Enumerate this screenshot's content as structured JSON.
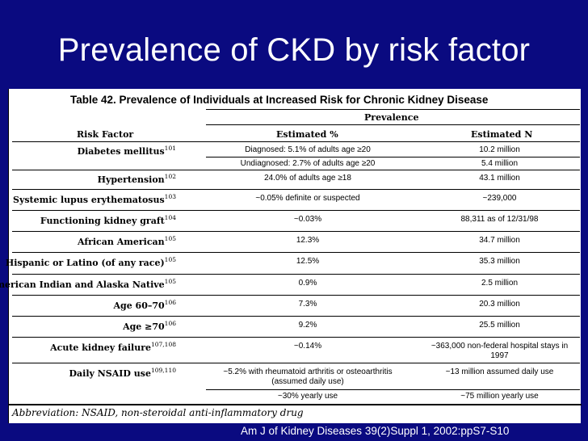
{
  "slide": {
    "title": "Prevalence of CKD by risk factor",
    "citation": "Am J of Kidney Diseases 39(2)Suppl 1, 2002:ppS7-S10"
  },
  "table": {
    "caption": "Table 42. Prevalence of Individuals at Increased Risk for Chronic Kidney Disease",
    "group_header": "Prevalence",
    "headers": {
      "risk_factor": "Risk Factor",
      "estimated_pct": "Estimated %",
      "estimated_n": "Estimated N"
    },
    "rows": [
      {
        "risk_factor": "Diabetes mellitus",
        "ref": "101",
        "pct": [
          "Diagnosed: 5.1% of adults age ≥20",
          "Undiagnosed: 2.7% of adults age ≥20"
        ],
        "n": [
          "10.2 million",
          "5.4 million"
        ]
      },
      {
        "risk_factor": "Hypertension",
        "ref": "102",
        "pct": [
          "24.0% of adults age ≥18"
        ],
        "n": [
          "43.1 million"
        ]
      },
      {
        "risk_factor": "Systemic lupus erythematosus",
        "ref": "103",
        "pct": [
          "~0.05% definite or suspected"
        ],
        "n": [
          "~239,000"
        ]
      },
      {
        "risk_factor": "Functioning kidney graft",
        "ref": "104",
        "pct": [
          "~0.03%"
        ],
        "n": [
          "88,311 as of 12/31/98"
        ]
      },
      {
        "risk_factor": "African American",
        "ref": "105",
        "pct": [
          "12.3%"
        ],
        "n": [
          "34.7 million"
        ]
      },
      {
        "risk_factor": "Hispanic or Latino (of any race)",
        "ref": "105",
        "pct": [
          "12.5%"
        ],
        "n": [
          "35.3 million"
        ]
      },
      {
        "risk_factor": "American Indian and Alaska Native",
        "ref": "105",
        "pct": [
          "0.9%"
        ],
        "n": [
          "2.5 million"
        ]
      },
      {
        "risk_factor": "Age 60–70",
        "ref": "106",
        "pct": [
          "7.3%"
        ],
        "n": [
          "20.3 million"
        ]
      },
      {
        "risk_factor": "Age ≥70",
        "ref": "106",
        "pct": [
          "9.2%"
        ],
        "n": [
          "25.5 million"
        ]
      },
      {
        "risk_factor": "Acute kidney failure",
        "ref": "107,108",
        "pct": [
          "~0.14%"
        ],
        "n": [
          "~363,000 non-federal hospital stays in",
          "1997"
        ]
      },
      {
        "risk_factor": "Daily NSAID use",
        "ref": "109,110",
        "pct": [
          "~5.2% with rheumatoid arthritis or osteoarthritis",
          "(assumed daily use)",
          "~30% yearly use"
        ],
        "n": [
          "~13 million assumed daily use",
          "~75 million yearly use"
        ]
      }
    ],
    "abbreviation": "Abbreviation: NSAID, non-steroidal anti-inflammatory drug"
  }
}
